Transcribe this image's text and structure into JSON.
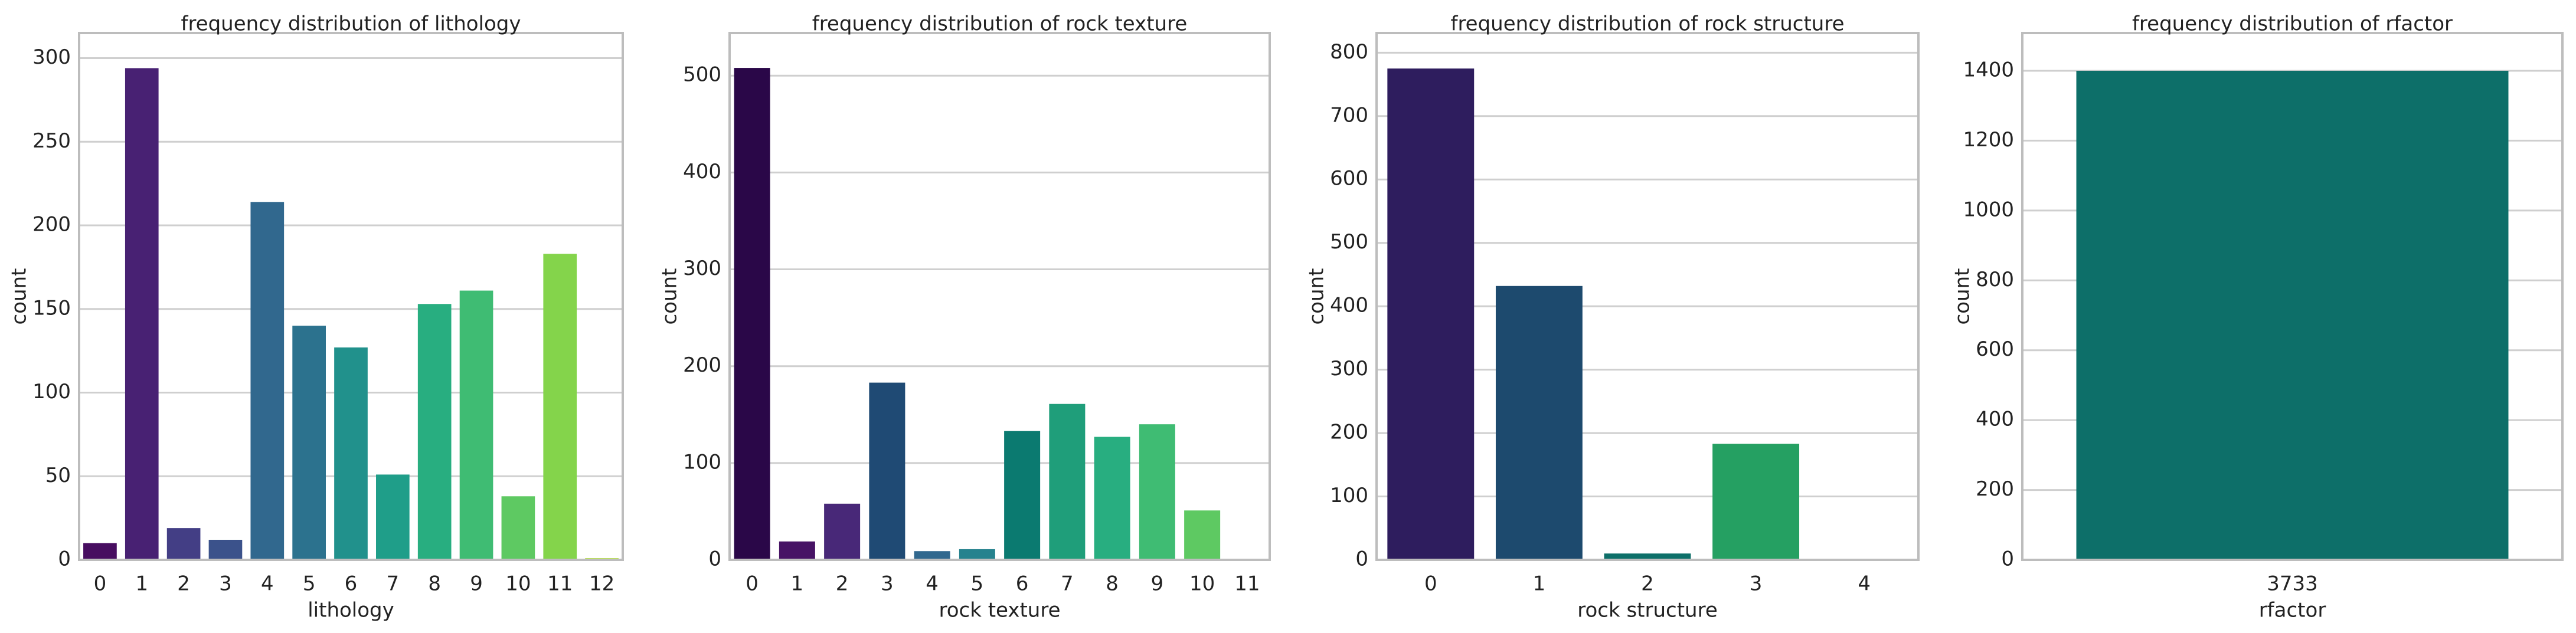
{
  "chart_data": [
    {
      "type": "bar",
      "title": "frequency distribution of lithology",
      "xlabel": "lithology",
      "ylabel": "count",
      "categories": [
        0,
        1,
        2,
        3,
        4,
        5,
        6,
        7,
        8,
        9,
        10,
        11,
        12
      ],
      "values": [
        10,
        294,
        19,
        12,
        214,
        140,
        127,
        51,
        153,
        161,
        38,
        183,
        1
      ],
      "colors": [
        "#470d60",
        "#482173",
        "#433e85",
        "#3b528b",
        "#31688e",
        "#2c728e",
        "#21918c",
        "#1f9e89",
        "#28ae80",
        "#3fbc73",
        "#5ec962",
        "#84d44b",
        "#addc30"
      ],
      "ylim": [
        0,
        315
      ],
      "yticks": [
        0,
        50,
        100,
        150,
        200,
        250,
        300
      ],
      "grid": true
    },
    {
      "type": "bar",
      "title": "frequency distribution of rock texture",
      "xlabel": "rock texture",
      "ylabel": "count",
      "categories": [
        0,
        1,
        2,
        3,
        4,
        5,
        6,
        7,
        8,
        9,
        10,
        11
      ],
      "values": [
        508,
        19,
        58,
        183,
        9,
        11,
        133,
        161,
        127,
        140,
        51,
        1
      ],
      "colors": [
        "#2a0748",
        "#471365",
        "#482878",
        "#1f4a74",
        "#31688e",
        "#26828e",
        "#0b7a70",
        "#1f9e7a",
        "#28ae80",
        "#3fbc73",
        "#5ec962",
        "#84c43b"
      ],
      "ylim": [
        0,
        544
      ],
      "yticks": [
        0,
        100,
        200,
        300,
        400,
        500
      ],
      "grid": true
    },
    {
      "type": "bar",
      "title": "frequency distribution of rock structure",
      "xlabel": "rock structure",
      "ylabel": "count",
      "categories": [
        0,
        1,
        2,
        3,
        4
      ],
      "values": [
        775,
        432,
        10,
        183,
        1
      ],
      "colors": [
        "#2e1d5e",
        "#1d4a6e",
        "#0d6f69",
        "#25a062",
        "#90d743"
      ],
      "ylim": [
        0,
        831
      ],
      "yticks": [
        0,
        100,
        200,
        300,
        400,
        500,
        600,
        700,
        800
      ],
      "grid": true
    },
    {
      "type": "bar",
      "title": "frequency distribution of rfactor",
      "xlabel": "rfactor",
      "ylabel": "count",
      "categories": [
        3733
      ],
      "values": [
        1400
      ],
      "colors": [
        "#0d6f69"
      ],
      "ylim": [
        0,
        1508
      ],
      "yticks": [
        0,
        200,
        400,
        600,
        800,
        1000,
        1200,
        1400
      ],
      "grid": true
    }
  ]
}
